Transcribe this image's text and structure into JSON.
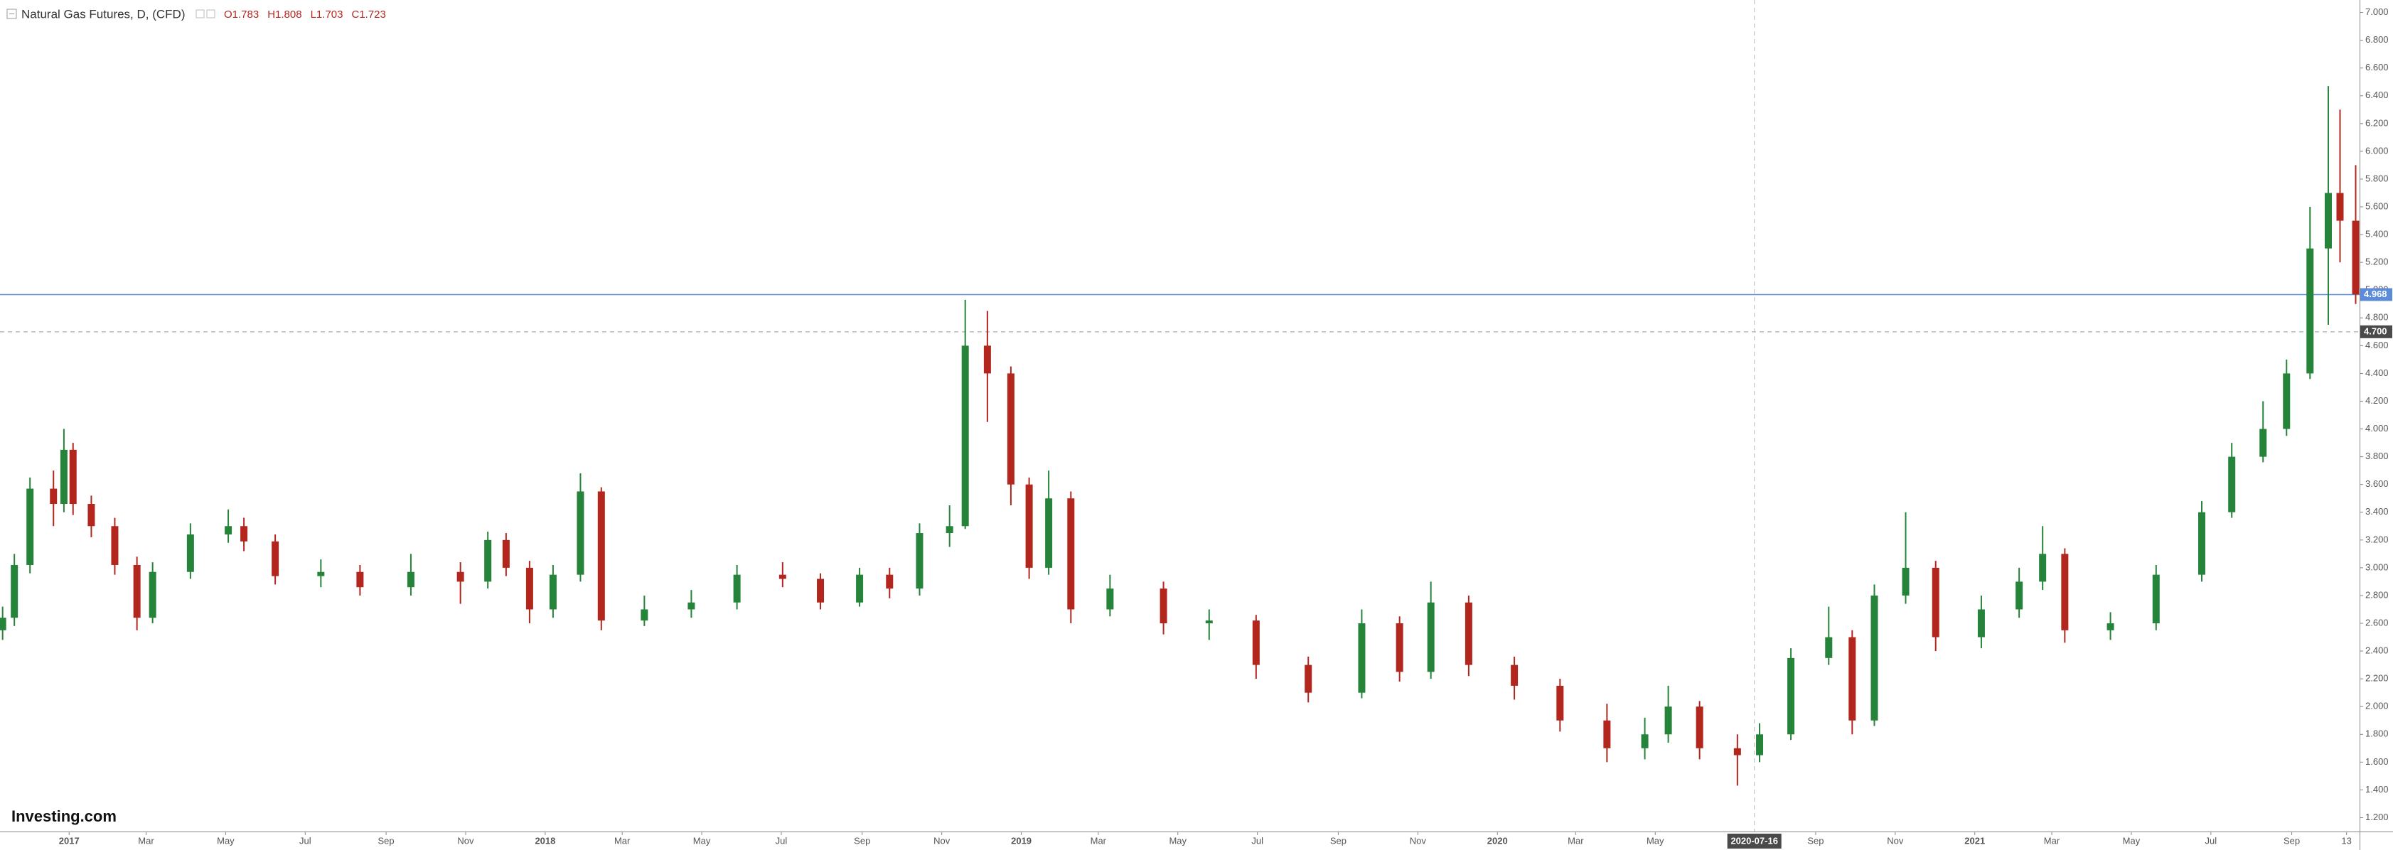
{
  "chart_data": {
    "type": "candlestick",
    "title": "Natural Gas Futures, D, (CFD)",
    "ohlc_readout": [
      "O1.783",
      "H1.808",
      "L1.703",
      "C1.723"
    ],
    "logo": "Investing.com",
    "up_color": "#26843a",
    "down_color": "#b3261e",
    "x": [
      "2016-11-11",
      "2016-11-20",
      "2016-12-02",
      "2016-12-20",
      "2016-12-28",
      "2017-01-04",
      "2017-01-18",
      "2017-02-05",
      "2017-02-22",
      "2017-03-06",
      "2017-04-04",
      "2017-05-03",
      "2017-05-15",
      "2017-06-08",
      "2017-07-13",
      "2017-08-12",
      "2017-09-20",
      "2017-10-28",
      "2017-11-18",
      "2017-12-02",
      "2017-12-20",
      "2018-01-07",
      "2018-01-28",
      "2018-02-13",
      "2018-03-18",
      "2018-04-23",
      "2018-05-28",
      "2018-07-02",
      "2018-07-31",
      "2018-08-30",
      "2018-09-22",
      "2018-10-15",
      "2018-11-07",
      "2018-11-19",
      "2018-12-06",
      "2018-12-24",
      "2019-01-07",
      "2019-01-22",
      "2019-02-08",
      "2019-03-10",
      "2019-04-20",
      "2019-05-25",
      "2019-06-30",
      "2019-08-09",
      "2019-09-19",
      "2019-10-18",
      "2019-11-11",
      "2019-12-10",
      "2020-01-14",
      "2020-02-18",
      "2020-03-25",
      "2020-04-23",
      "2020-05-11",
      "2020-06-04",
      "2020-07-03",
      "2020-07-20",
      "2020-08-13",
      "2020-09-11",
      "2020-09-29",
      "2020-10-16",
      "2020-11-09",
      "2020-12-02",
      "2021-01-06",
      "2021-02-04",
      "2021-02-22",
      "2021-03-11",
      "2021-04-15",
      "2021-05-20",
      "2021-06-24",
      "2021-07-17",
      "2021-08-10",
      "2021-08-28",
      "2021-09-15",
      "2021-09-29",
      "2021-10-08",
      "2021-10-20"
    ],
    "open": [
      2.55,
      2.64,
      3.02,
      3.57,
      3.46,
      3.85,
      3.46,
      3.3,
      3.02,
      2.64,
      2.97,
      3.24,
      3.3,
      3.19,
      2.94,
      2.97,
      2.86,
      2.97,
      2.9,
      3.2,
      3.0,
      2.7,
      2.95,
      3.55,
      2.62,
      2.7,
      2.75,
      2.95,
      2.92,
      2.75,
      2.95,
      2.85,
      3.25,
      3.3,
      4.6,
      4.4,
      3.6,
      3.0,
      3.5,
      2.7,
      2.85,
      2.6,
      2.62,
      2.3,
      2.1,
      2.6,
      2.25,
      2.75,
      2.3,
      2.15,
      1.9,
      1.7,
      1.8,
      2.0,
      1.7,
      1.65,
      1.8,
      2.35,
      2.5,
      1.9,
      2.8,
      3.0,
      2.5,
      2.7,
      2.9,
      3.1,
      2.55,
      2.6,
      2.95,
      3.4,
      3.8,
      4.0,
      4.4,
      5.3,
      5.7,
      5.5
    ],
    "high": [
      2.72,
      3.1,
      3.65,
      3.7,
      4.0,
      3.9,
      3.52,
      3.36,
      3.08,
      3.04,
      3.32,
      3.42,
      3.36,
      3.24,
      3.06,
      3.02,
      3.1,
      3.04,
      3.26,
      3.25,
      3.05,
      3.02,
      3.68,
      3.58,
      2.8,
      2.84,
      3.02,
      3.04,
      2.96,
      3.0,
      3.0,
      3.32,
      3.45,
      4.93,
      4.85,
      4.45,
      3.65,
      3.7,
      3.55,
      2.95,
      2.9,
      2.7,
      2.66,
      2.36,
      2.7,
      2.65,
      2.9,
      2.8,
      2.36,
      2.2,
      2.02,
      1.92,
      2.15,
      2.04,
      1.8,
      1.88,
      2.42,
      2.72,
      2.55,
      2.88,
      3.4,
      3.05,
      2.8,
      3.0,
      3.3,
      3.14,
      2.68,
      3.02,
      3.48,
      3.9,
      4.2,
      4.5,
      5.6,
      6.47,
      6.3,
      5.9
    ],
    "low": [
      2.48,
      2.58,
      2.96,
      3.3,
      3.4,
      3.38,
      3.22,
      2.95,
      2.55,
      2.6,
      2.92,
      3.18,
      3.12,
      2.88,
      2.86,
      2.8,
      2.8,
      2.74,
      2.85,
      2.94,
      2.6,
      2.64,
      2.9,
      2.55,
      2.58,
      2.64,
      2.7,
      2.86,
      2.7,
      2.72,
      2.78,
      2.8,
      3.15,
      3.28,
      4.05,
      3.45,
      2.92,
      2.95,
      2.6,
      2.65,
      2.52,
      2.48,
      2.2,
      2.03,
      2.06,
      2.18,
      2.2,
      2.22,
      2.05,
      1.82,
      1.6,
      1.62,
      1.74,
      1.62,
      1.43,
      1.6,
      1.76,
      2.3,
      1.8,
      1.86,
      2.74,
      2.4,
      2.42,
      2.64,
      2.84,
      2.46,
      2.48,
      2.55,
      2.9,
      3.36,
      3.76,
      3.95,
      4.36,
      4.75,
      5.2,
      4.9
    ],
    "close": [
      2.64,
      3.02,
      3.57,
      3.46,
      3.85,
      3.46,
      3.3,
      3.02,
      2.64,
      2.97,
      3.24,
      3.3,
      3.19,
      2.94,
      2.97,
      2.86,
      2.97,
      2.9,
      3.2,
      3.0,
      2.7,
      2.95,
      3.55,
      2.62,
      2.7,
      2.75,
      2.95,
      2.92,
      2.75,
      2.95,
      2.85,
      3.25,
      3.3,
      4.6,
      4.4,
      3.6,
      3.0,
      3.5,
      2.7,
      2.85,
      2.6,
      2.62,
      2.3,
      2.1,
      2.6,
      2.25,
      2.75,
      2.3,
      2.15,
      1.9,
      1.7,
      1.8,
      2.0,
      1.7,
      1.65,
      1.8,
      2.35,
      2.5,
      1.9,
      2.8,
      3.0,
      2.5,
      2.7,
      2.9,
      3.1,
      2.55,
      2.6,
      2.95,
      3.4,
      3.8,
      4.0,
      4.4,
      5.3,
      5.7,
      5.5,
      4.97
    ],
    "xlim": [
      "2016-11-09",
      "2021-10-23"
    ],
    "xticks": [
      {
        "value": "2017-01-01",
        "label": "2017"
      },
      {
        "value": "2017-03-01",
        "label": "Mar"
      },
      {
        "value": "2017-05-01",
        "label": "May"
      },
      {
        "value": "2017-07-01",
        "label": "Jul"
      },
      {
        "value": "2017-09-01",
        "label": "Sep"
      },
      {
        "value": "2017-11-01",
        "label": "Nov"
      },
      {
        "value": "2018-01-01",
        "label": "2018"
      },
      {
        "value": "2018-03-01",
        "label": "Mar"
      },
      {
        "value": "2018-05-01",
        "label": "May"
      },
      {
        "value": "2018-07-01",
        "label": "Jul"
      },
      {
        "value": "2018-09-01",
        "label": "Sep"
      },
      {
        "value": "2018-11-01",
        "label": "Nov"
      },
      {
        "value": "2019-01-01",
        "label": "2019"
      },
      {
        "value": "2019-03-01",
        "label": "Mar"
      },
      {
        "value": "2019-05-01",
        "label": "May"
      },
      {
        "value": "2019-07-01",
        "label": "Jul"
      },
      {
        "value": "2019-09-01",
        "label": "Sep"
      },
      {
        "value": "2019-11-01",
        "label": "Nov"
      },
      {
        "value": "2020-01-01",
        "label": "2020"
      },
      {
        "value": "2020-03-01",
        "label": "Mar"
      },
      {
        "value": "2020-05-01",
        "label": "May"
      },
      {
        "value": "2020-09-01",
        "label": "Sep"
      },
      {
        "value": "2020-11-01",
        "label": "Nov"
      },
      {
        "value": "2021-01-01",
        "label": "2021"
      },
      {
        "value": "2021-03-01",
        "label": "Mar"
      },
      {
        "value": "2021-05-01",
        "label": "May"
      },
      {
        "value": "2021-07-01",
        "label": "Jul"
      },
      {
        "value": "2021-09-01",
        "label": "Sep"
      },
      {
        "value": "2021-10-13",
        "label": "13"
      }
    ],
    "ylim": [
      1.1,
      7.09
    ],
    "yticks": [
      {
        "value": 1.2,
        "label": "1.200"
      },
      {
        "value": 1.4,
        "label": "1.400"
      },
      {
        "value": 1.6,
        "label": "1.600"
      },
      {
        "value": 1.8,
        "label": "1.800"
      },
      {
        "value": 2.0,
        "label": "2.000"
      },
      {
        "value": 2.2,
        "label": "2.200"
      },
      {
        "value": 2.4,
        "label": "2.400"
      },
      {
        "value": 2.6,
        "label": "2.600"
      },
      {
        "value": 2.8,
        "label": "2.800"
      },
      {
        "value": 3.0,
        "label": "3.000"
      },
      {
        "value": 3.2,
        "label": "3.200"
      },
      {
        "value": 3.4,
        "label": "3.400"
      },
      {
        "value": 3.6,
        "label": "3.600"
      },
      {
        "value": 3.8,
        "label": "3.800"
      },
      {
        "value": 4.0,
        "label": "4.000"
      },
      {
        "value": 4.2,
        "label": "4.200"
      },
      {
        "value": 4.4,
        "label": "4.400"
      },
      {
        "value": 4.6,
        "label": "4.600"
      },
      {
        "value": 4.8,
        "label": "4.800"
      },
      {
        "value": 5.0,
        "label": "5.000"
      },
      {
        "value": 5.2,
        "label": "5.200"
      },
      {
        "value": 5.4,
        "label": "5.400"
      },
      {
        "value": 5.6,
        "label": "5.600"
      },
      {
        "value": 5.8,
        "label": "5.800"
      },
      {
        "value": 6.0,
        "label": "6.000"
      },
      {
        "value": 6.2,
        "label": "6.200"
      },
      {
        "value": 6.4,
        "label": "6.400"
      },
      {
        "value": 6.6,
        "label": "6.600"
      },
      {
        "value": 6.8,
        "label": "6.800"
      },
      {
        "value": 7.0,
        "label": "7.000"
      }
    ],
    "price_line": {
      "value": 4.968,
      "label": "4.968",
      "color": "#5b8bd9"
    },
    "crosshair": {
      "y": {
        "value": 4.7,
        "label": "4.700"
      },
      "x": "2020-07-16"
    }
  }
}
